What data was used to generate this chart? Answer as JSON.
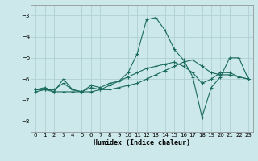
{
  "xlabel": "Humidex (Indice chaleur)",
  "bg_color": "#cce8ea",
  "grid_color": "#b0d0d3",
  "line_color": "#1a6b5e",
  "xlim": [
    -0.5,
    23.5
  ],
  "ylim": [
    -8.5,
    -2.5
  ],
  "yticks": [
    -8,
    -7,
    -6,
    -5,
    -4,
    -3
  ],
  "xticks": [
    0,
    1,
    2,
    3,
    4,
    5,
    6,
    7,
    8,
    9,
    10,
    11,
    12,
    13,
    14,
    15,
    16,
    17,
    18,
    19,
    20,
    21,
    22,
    23
  ],
  "series1_x": [
    0,
    1,
    2,
    3,
    4,
    5,
    6,
    7,
    8,
    9,
    10,
    11,
    12,
    13,
    14,
    15,
    16,
    17,
    18,
    19,
    20,
    21,
    22,
    23
  ],
  "series1_y": [
    -6.5,
    -6.4,
    -6.6,
    -6.0,
    -6.5,
    -6.6,
    -6.3,
    -6.4,
    -6.2,
    -6.1,
    -5.9,
    -5.7,
    -5.5,
    -5.4,
    -5.3,
    -5.2,
    -5.4,
    -5.7,
    -6.2,
    -6.0,
    -5.7,
    -5.7,
    -5.9,
    -6.0
  ],
  "series2_x": [
    0,
    1,
    2,
    3,
    4,
    5,
    6,
    7,
    8,
    9,
    10,
    11,
    12,
    13,
    14,
    15,
    16,
    17,
    18,
    19,
    20,
    21,
    22,
    23
  ],
  "series2_y": [
    -6.6,
    -6.5,
    -6.6,
    -6.6,
    -6.6,
    -6.6,
    -6.6,
    -6.5,
    -6.5,
    -6.4,
    -6.3,
    -6.2,
    -6.0,
    -5.8,
    -5.6,
    -5.4,
    -5.2,
    -5.1,
    -5.4,
    -5.7,
    -5.8,
    -5.8,
    -5.9,
    -6.0
  ],
  "series3_x": [
    0,
    1,
    2,
    3,
    4,
    5,
    6,
    7,
    8,
    9,
    10,
    11,
    12,
    13,
    14,
    15,
    16,
    17,
    18,
    19,
    20,
    21,
    22,
    23
  ],
  "series3_y": [
    -6.5,
    -6.5,
    -6.5,
    -6.2,
    -6.5,
    -6.6,
    -6.4,
    -6.5,
    -6.3,
    -6.1,
    -5.7,
    -4.8,
    -3.2,
    -3.1,
    -3.7,
    -4.6,
    -5.1,
    -5.9,
    -7.8,
    -6.4,
    -5.9,
    -5.0,
    -5.0,
    -6.0
  ]
}
